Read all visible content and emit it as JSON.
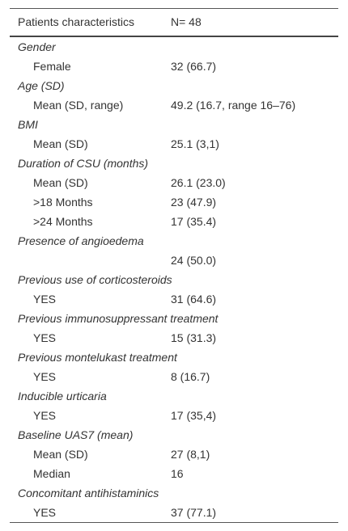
{
  "table": {
    "header": [
      "Patients characteristics",
      "N= 48"
    ],
    "groups": [
      {
        "label": "Gender",
        "rows": [
          {
            "label": "Female",
            "value": "32 (66.7)"
          }
        ]
      },
      {
        "label": "Age (SD)",
        "rows": [
          {
            "label": "Mean (SD, range)",
            "value": "49.2 (16.7, range 16–76)"
          }
        ]
      },
      {
        "label": "BMI",
        "rows": [
          {
            "label": "Mean (SD)",
            "value": "25.1 (3,1)"
          }
        ]
      },
      {
        "label": "Duration of CSU (months)",
        "rows": [
          {
            "label": "Mean (SD)",
            "value": "26.1 (23.0)"
          },
          {
            "label": ">18 Months",
            "value": "23 (47.9)"
          },
          {
            "label": ">24 Months",
            "value": "17 (35.4)"
          }
        ]
      },
      {
        "label": "Presence of angioedema",
        "rows": [
          {
            "value": "24 (50.0)"
          }
        ]
      },
      {
        "label": "Previous use of corticosteroids",
        "rows": [
          {
            "label": "YES",
            "value": "31 (64.6)"
          }
        ]
      },
      {
        "label": "Previous immunosuppressant treatment",
        "rows": [
          {
            "label": "YES",
            "value": "15 (31.3)"
          }
        ]
      },
      {
        "label": "Previous montelukast treatment",
        "rows": [
          {
            "label": "YES",
            "value": "8 (16.7)"
          }
        ]
      },
      {
        "label": "Inducible urticaria",
        "rows": [
          {
            "label": "YES",
            "value": "17 (35,4)"
          }
        ]
      },
      {
        "label": "Baseline UAS7 (mean)",
        "rows": [
          {
            "label": "Mean (SD)",
            "value": "27 (8,1)"
          },
          {
            "label": "Median",
            "value": "16"
          }
        ]
      },
      {
        "label": "Concomitant antihistaminics",
        "rows": [
          {
            "label": "YES",
            "value": "37 (77.1)"
          }
        ]
      }
    ]
  }
}
